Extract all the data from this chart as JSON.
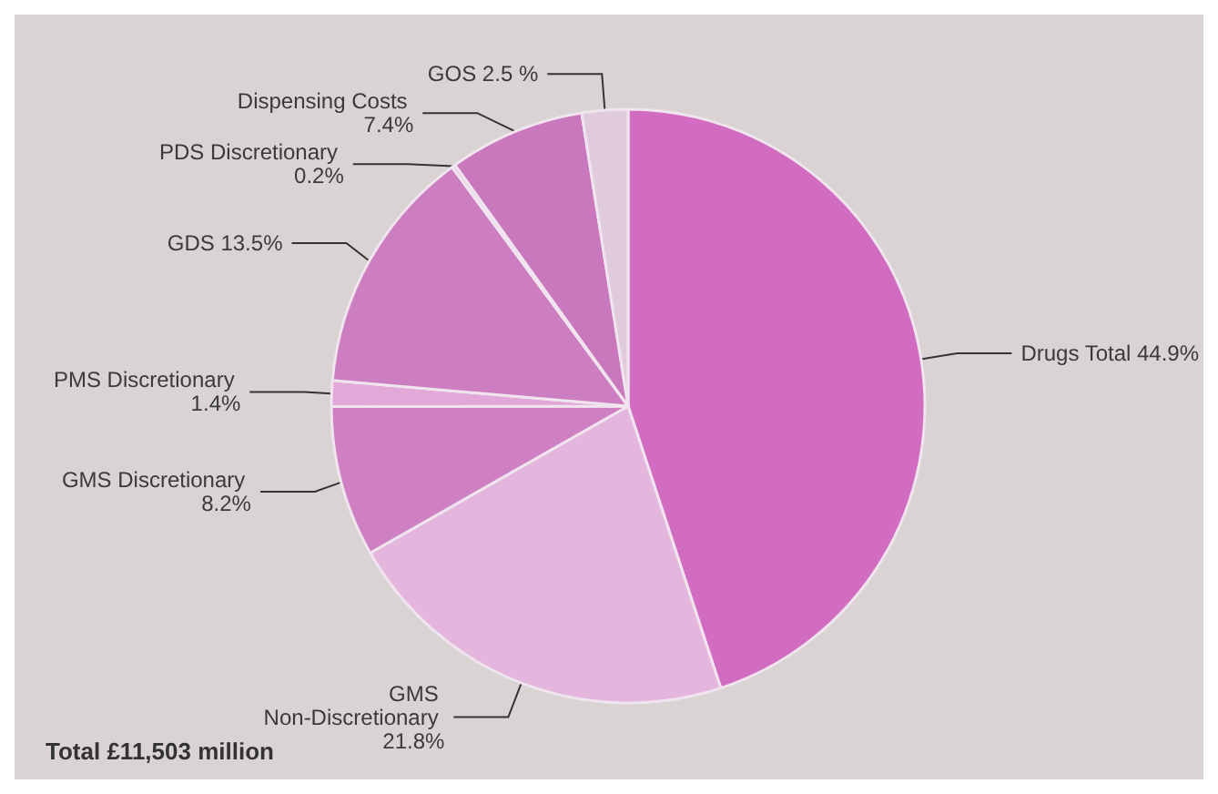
{
  "chart_data": {
    "type": "pie",
    "title": "Total £11,503 million",
    "categories": [
      "Drugs Total",
      "GMS Non-Discretionary",
      "GMS Discretionary",
      "PMS Discretionary",
      "GDS",
      "PDS Discretionary",
      "Dispensing Costs",
      "GOS"
    ],
    "values": [
      44.9,
      21.8,
      8.2,
      1.4,
      13.5,
      0.2,
      7.4,
      2.5
    ],
    "value_labels": [
      "44.9%",
      "21.8%",
      "8.2%",
      "1.4%",
      "13.5%",
      "0.2%",
      "7.4%",
      "2.5 %"
    ],
    "colors": [
      "#d26cc1",
      "#e4b6dd",
      "#cf80c3",
      "#e2a9d8",
      "#cd7ec1",
      "#ebc6e4",
      "#c978bd",
      "#e0cbdc"
    ],
    "legend": false
  }
}
